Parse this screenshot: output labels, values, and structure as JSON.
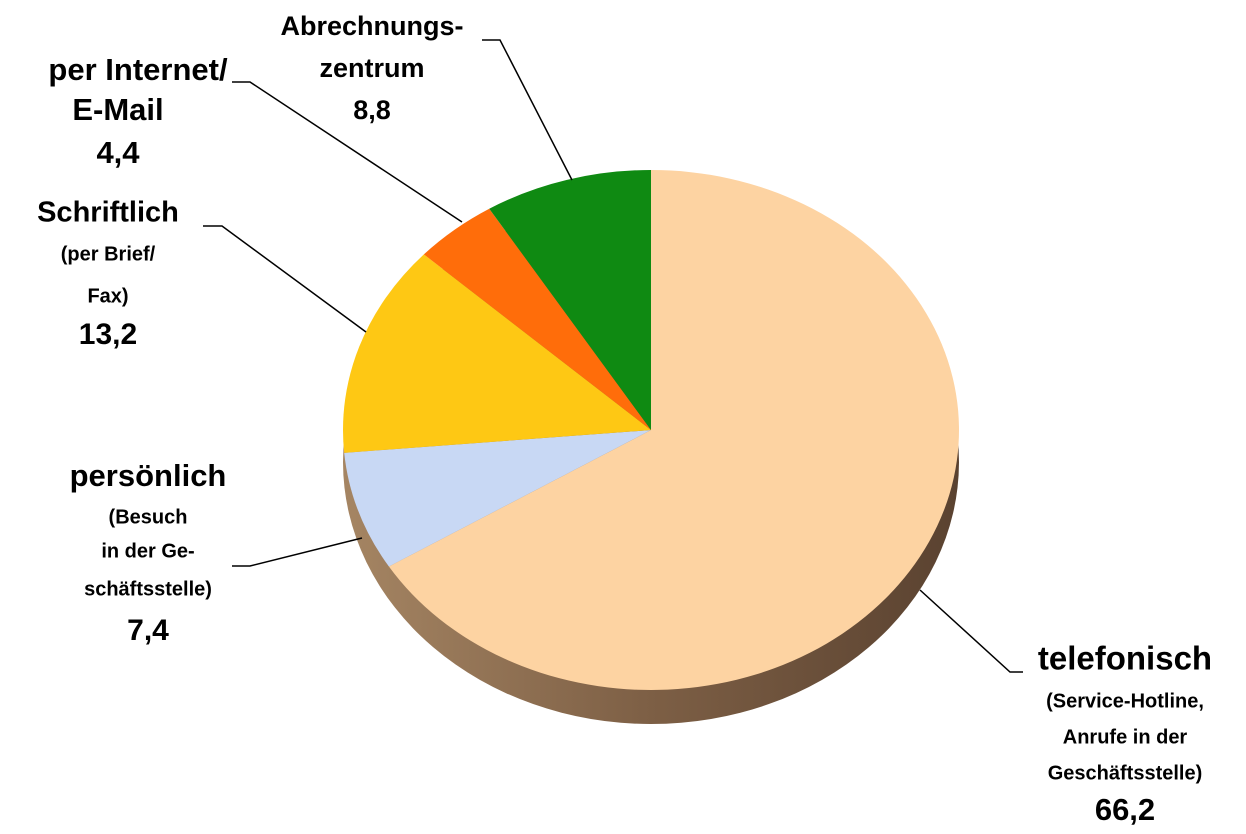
{
  "chart_data": {
    "type": "pie",
    "categories": [
      [
        "telefonisch"
      ],
      [
        "persönlich"
      ],
      [
        "Schriftlich"
      ],
      [
        "per Internet/",
        "E-Mail"
      ],
      [
        "Abrechnungs-",
        "zentrum"
      ]
    ],
    "notes": [
      [
        "(Service-Hotline,",
        "Anrufe in der",
        "Geschäftsstelle)"
      ],
      [
        "(Besuch",
        "in der Ge-",
        "schäftsstelle)"
      ],
      [
        "(per Brief/",
        "Fax)"
      ],
      [],
      []
    ],
    "values": [
      66.2,
      7.4,
      13.2,
      4.4,
      8.8
    ],
    "value_labels": [
      "66,2",
      "7,4",
      "13,2",
      "4,4",
      "8,8"
    ],
    "colors": [
      "#fdd3a2",
      "#c8d8f4",
      "#fec814",
      "#ff6d0a",
      "#0f8a12"
    ]
  }
}
